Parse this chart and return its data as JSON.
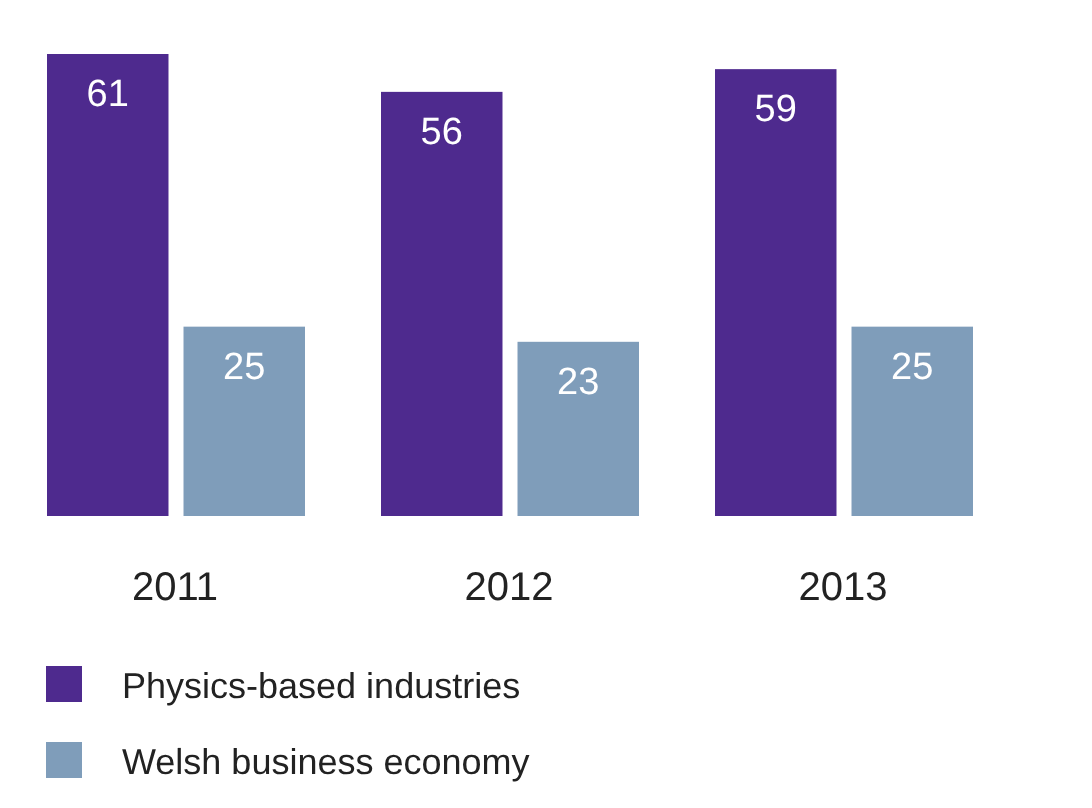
{
  "chart_data": {
    "type": "bar",
    "categories": [
      "2011",
      "2012",
      "2013"
    ],
    "series": [
      {
        "name": "Physics-based industries",
        "color": "#4e2a8e",
        "values": [
          61,
          56,
          59
        ]
      },
      {
        "name": "Welsh business economy",
        "color": "#7f9dba",
        "values": [
          25,
          23,
          25
        ]
      }
    ],
    "data_labels": true,
    "legend": "bottom left",
    "grid": false
  }
}
